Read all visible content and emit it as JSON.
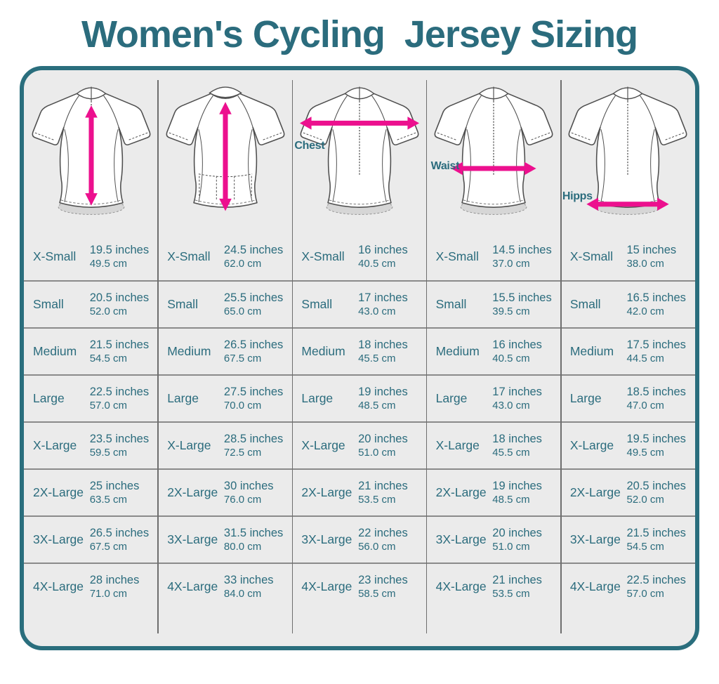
{
  "title": "Women's Cycling  Jersey Sizing",
  "colors": {
    "teal": "#2B6C7D",
    "pink": "#EC108E",
    "panel_bg": "#EBEBEB",
    "panel_border": "#2A6E7D",
    "grid_line": "#8A8A8A",
    "divider": "#6E6E6E"
  },
  "columns": [
    {
      "measure": "front-length",
      "view": "front",
      "arrow_icon": "vertical-double-arrow-icon",
      "label": "",
      "rows": [
        {
          "size": "X-Small",
          "inches": "19.5 inches",
          "cm": "49.5 cm"
        },
        {
          "size": "Small",
          "inches": "20.5 inches",
          "cm": "52.0 cm"
        },
        {
          "size": "Medium",
          "inches": "21.5 inches",
          "cm": "54.5 cm"
        },
        {
          "size": "Large",
          "inches": "22.5 inches",
          "cm": "57.0 cm"
        },
        {
          "size": "X-Large",
          "inches": "23.5 inches",
          "cm": "59.5 cm"
        },
        {
          "size": "2X-Large",
          "inches": "25 inches",
          "cm": "63.5 cm"
        },
        {
          "size": "3X-Large",
          "inches": "26.5 inches",
          "cm": "67.5 cm"
        },
        {
          "size": "4X-Large",
          "inches": "28 inches",
          "cm": "71.0 cm"
        }
      ]
    },
    {
      "measure": "back-length",
      "view": "back",
      "arrow_icon": "vertical-double-arrow-icon",
      "label": "",
      "rows": [
        {
          "size": "X-Small",
          "inches": "24.5 inches",
          "cm": "62.0 cm"
        },
        {
          "size": "Small",
          "inches": "25.5 inches",
          "cm": "65.0 cm"
        },
        {
          "size": "Medium",
          "inches": "26.5 inches",
          "cm": "67.5 cm"
        },
        {
          "size": "Large",
          "inches": "27.5 inches",
          "cm": "70.0 cm"
        },
        {
          "size": "X-Large",
          "inches": "28.5 inches",
          "cm": "72.5 cm"
        },
        {
          "size": "2X-Large",
          "inches": "30 inches",
          "cm": "76.0 cm"
        },
        {
          "size": "3X-Large",
          "inches": "31.5 inches",
          "cm": "80.0 cm"
        },
        {
          "size": "4X-Large",
          "inches": "33 inches",
          "cm": "84.0 cm"
        }
      ]
    },
    {
      "measure": "chest",
      "view": "front",
      "arrow_icon": "horizontal-double-arrow-icon",
      "label": "Chest",
      "rows": [
        {
          "size": "X-Small",
          "inches": "16 inches",
          "cm": "40.5 cm"
        },
        {
          "size": "Small",
          "inches": "17 inches",
          "cm": "43.0 cm"
        },
        {
          "size": "Medium",
          "inches": "18 inches",
          "cm": "45.5 cm"
        },
        {
          "size": "Large",
          "inches": "19 inches",
          "cm": "48.5 cm"
        },
        {
          "size": "X-Large",
          "inches": "20 inches",
          "cm": "51.0 cm"
        },
        {
          "size": "2X-Large",
          "inches": "21 inches",
          "cm": "53.5 cm"
        },
        {
          "size": "3X-Large",
          "inches": "22 inches",
          "cm": "56.0 cm"
        },
        {
          "size": "4X-Large",
          "inches": "23 inches",
          "cm": "58.5 cm"
        }
      ]
    },
    {
      "measure": "waist",
      "view": "front",
      "arrow_icon": "horizontal-double-arrow-icon",
      "label": "Waist",
      "rows": [
        {
          "size": "X-Small",
          "inches": "14.5 inches",
          "cm": "37.0 cm"
        },
        {
          "size": "Small",
          "inches": "15.5 inches",
          "cm": "39.5 cm"
        },
        {
          "size": "Medium",
          "inches": "16 inches",
          "cm": "40.5 cm"
        },
        {
          "size": "Large",
          "inches": "17 inches",
          "cm": "43.0 cm"
        },
        {
          "size": "X-Large",
          "inches": "18 inches",
          "cm": "45.5 cm"
        },
        {
          "size": "2X-Large",
          "inches": "19 inches",
          "cm": "48.5 cm"
        },
        {
          "size": "3X-Large",
          "inches": "20 inches",
          "cm": "51.0 cm"
        },
        {
          "size": "4X-Large",
          "inches": "21 inches",
          "cm": "53.5 cm"
        }
      ]
    },
    {
      "measure": "hips",
      "view": "front",
      "arrow_icon": "horizontal-double-arrow-icon",
      "label": "Hipps",
      "rows": [
        {
          "size": "X-Small",
          "inches": "15 inches",
          "cm": "38.0 cm"
        },
        {
          "size": "Small",
          "inches": "16.5 inches",
          "cm": "42.0 cm"
        },
        {
          "size": "Medium",
          "inches": "17.5 inches",
          "cm": "44.5 cm"
        },
        {
          "size": "Large",
          "inches": "18.5 inches",
          "cm": "47.0 cm"
        },
        {
          "size": "X-Large",
          "inches": "19.5 inches",
          "cm": "49.5 cm"
        },
        {
          "size": "2X-Large",
          "inches": "20.5 inches",
          "cm": "52.0 cm"
        },
        {
          "size": "3X-Large",
          "inches": "21.5 inches",
          "cm": "54.5 cm"
        },
        {
          "size": "4X-Large",
          "inches": "22.5 inches",
          "cm": "57.0 cm"
        }
      ]
    }
  ],
  "chart_data": {
    "type": "table",
    "title": "Women's Cycling Jersey Sizing",
    "row_labels": [
      "X-Small",
      "Small",
      "Medium",
      "Large",
      "X-Large",
      "2X-Large",
      "3X-Large",
      "4X-Large"
    ],
    "columns": [
      {
        "measure": "front-length",
        "inches": [
          19.5,
          20.5,
          21.5,
          22.5,
          23.5,
          25,
          26.5,
          28
        ],
        "cm": [
          49.5,
          52.0,
          54.5,
          57.0,
          59.5,
          63.5,
          67.5,
          71.0
        ]
      },
      {
        "measure": "back-length",
        "inches": [
          24.5,
          25.5,
          26.5,
          27.5,
          28.5,
          30,
          31.5,
          33
        ],
        "cm": [
          62.0,
          65.0,
          67.5,
          70.0,
          72.5,
          76.0,
          80.0,
          84.0
        ]
      },
      {
        "measure": "chest",
        "inches": [
          16,
          17,
          18,
          19,
          20,
          21,
          22,
          23
        ],
        "cm": [
          40.5,
          43.0,
          45.5,
          48.5,
          51.0,
          53.5,
          56.0,
          58.5
        ]
      },
      {
        "measure": "waist",
        "inches": [
          14.5,
          15.5,
          16,
          17,
          18,
          19,
          20,
          21
        ],
        "cm": [
          37.0,
          39.5,
          40.5,
          43.0,
          45.5,
          48.5,
          51.0,
          53.5
        ]
      },
      {
        "measure": "hips",
        "inches": [
          15,
          16.5,
          17.5,
          18.5,
          19.5,
          20.5,
          21.5,
          22.5
        ],
        "cm": [
          38.0,
          42.0,
          44.5,
          47.0,
          49.5,
          52.0,
          54.5,
          57.0
        ]
      }
    ]
  }
}
